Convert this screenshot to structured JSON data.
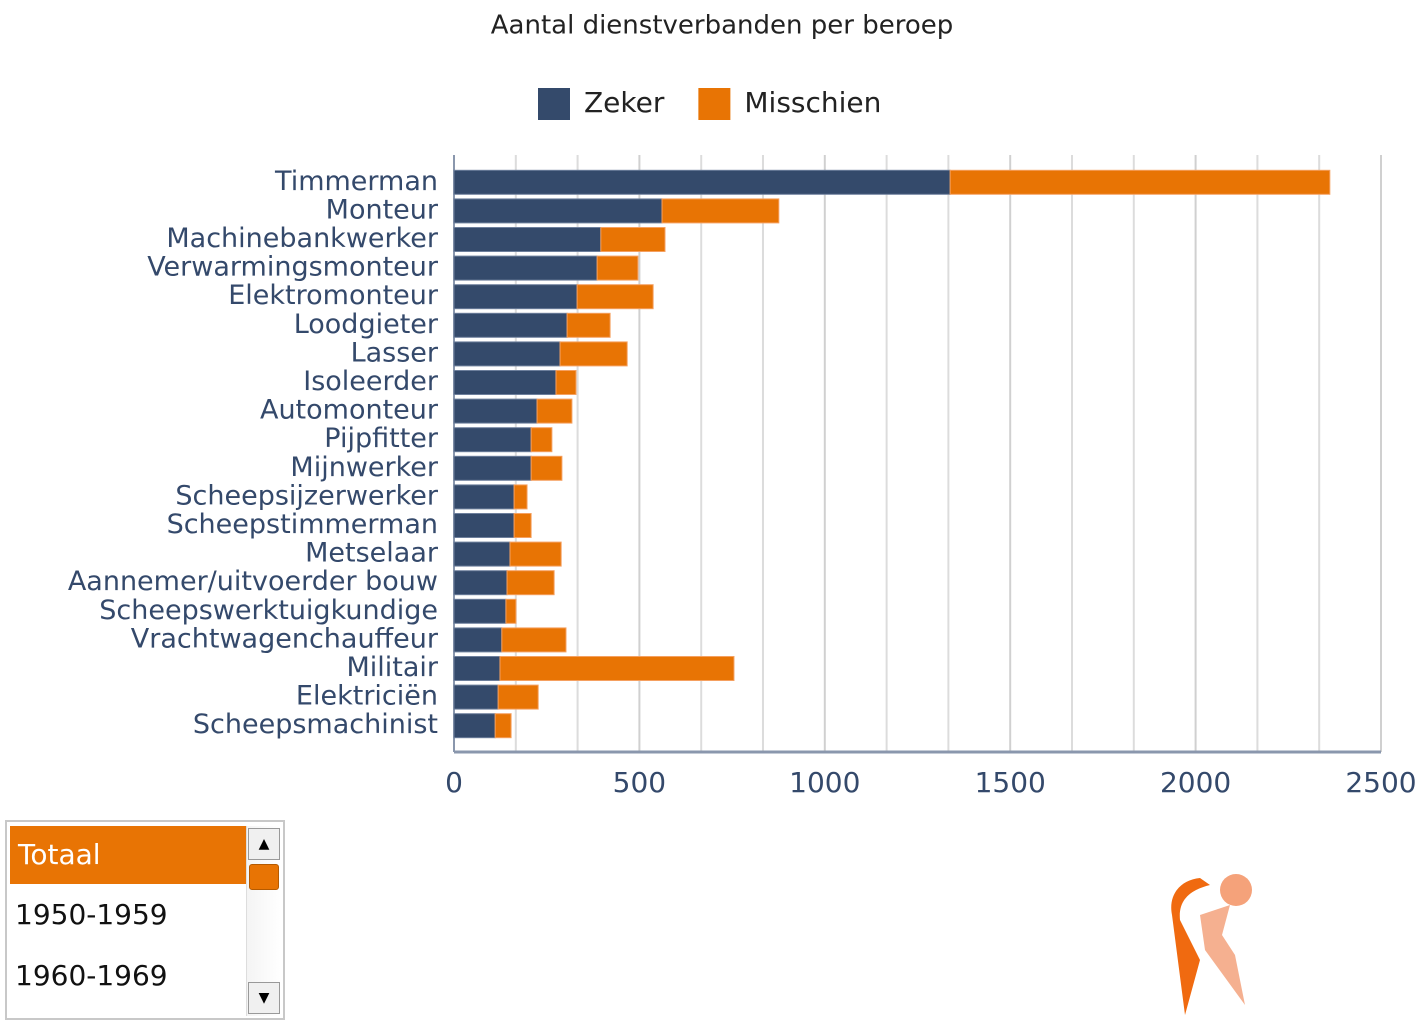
{
  "chart_data": {
    "type": "stacked_barh",
    "title": "Aantal dienstverbanden per beroep",
    "categories": [
      "Timmerman",
      "Monteur",
      "Machinebankwerker",
      "Verwarmingsmonteur",
      "Elektromonteur",
      "Loodgieter",
      "Lasser",
      "Isoleerder",
      "Automonteur",
      "Pijpfitter",
      "Mijnwerker",
      "Scheepsijzerwerker",
      "Scheepstimmerman",
      "Metselaar",
      "Aannemer/uitvoerder bouw",
      "Scheepswerktuigkundige",
      "Vrachtwagenchauffeur",
      "Militair",
      "Elektriciën",
      "Scheepsmachinist"
    ],
    "series": [
      {
        "name": "Zeker",
        "color": "#344a6b",
        "values": [
          1338,
          561,
          396,
          386,
          332,
          305,
          286,
          275,
          224,
          208,
          208,
          162,
          162,
          151,
          143,
          140,
          129,
          124,
          119,
          111
        ]
      },
      {
        "name": "Misschien",
        "color": "#e87404",
        "values": [
          1024,
          315,
          173,
          110,
          205,
          116,
          181,
          54,
          94,
          56,
          83,
          35,
          46,
          138,
          127,
          27,
          173,
          631,
          108,
          43
        ]
      }
    ],
    "xlim": [
      0,
      2500
    ],
    "xticks": [
      0,
      500,
      1000,
      1500,
      2000,
      2500
    ],
    "minor_grid": [
      166.7,
      333.3,
      666.7,
      833.3,
      1166.7,
      1333.3,
      1666.7,
      1833.3,
      2166.7,
      2333.3
    ],
    "grid": true,
    "legend": "top"
  },
  "selector": {
    "options": [
      "Totaal",
      "1950-1959",
      "1960-1969"
    ],
    "selected": 0
  }
}
